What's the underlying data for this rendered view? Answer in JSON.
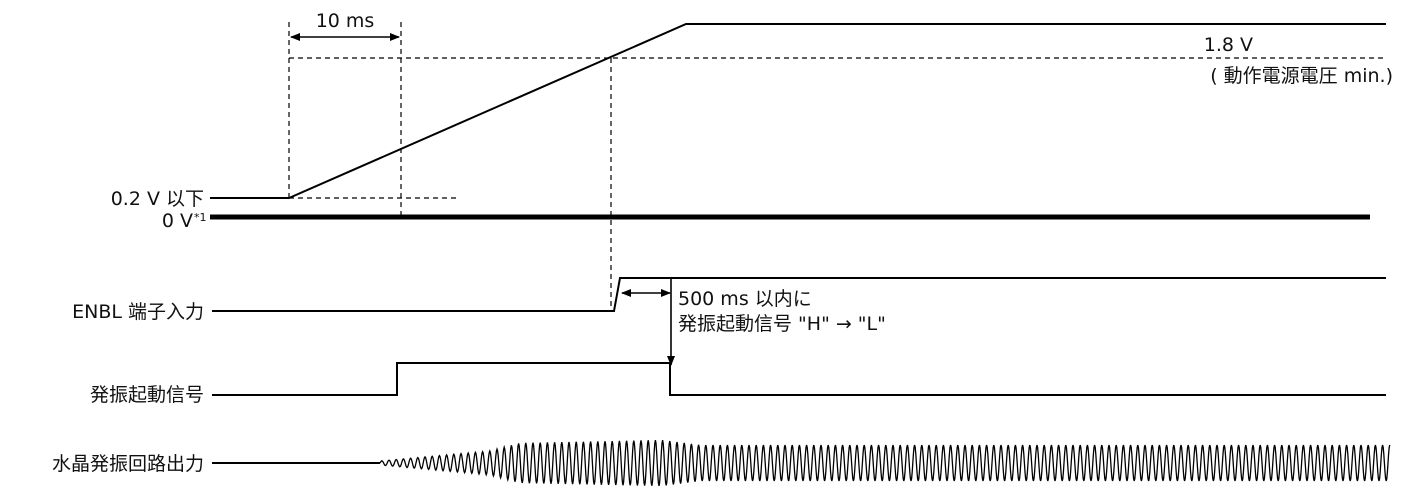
{
  "labels": {
    "interval_10ms": "10 ms",
    "v_1_8": "1.8 V",
    "v_min_note": "( 動作電源電圧 min.)",
    "v_0_2": "0.2 V 以下",
    "v_0": "0 V",
    "v_0_note": "*1",
    "enbl": "ENBL 端子入力",
    "note_500ms_line1": "500 ms 以内に",
    "note_500ms_line2": "発振起動信号 \"H\" → \"L\"",
    "osc_start": "発振起動信号",
    "crystal_out": "水晶発振回路出力"
  }
}
